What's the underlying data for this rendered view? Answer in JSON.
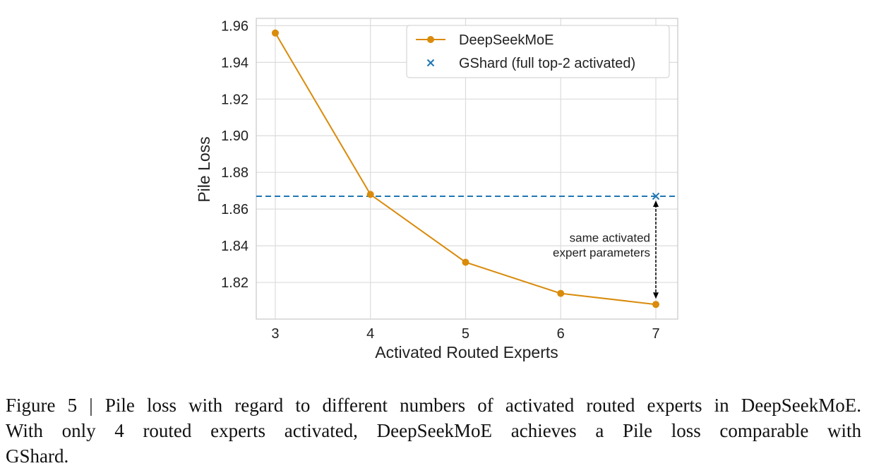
{
  "chart_data": {
    "type": "line",
    "title": "",
    "xlabel": "Activated Routed Experts",
    "ylabel": "Pile Loss",
    "x": [
      3,
      4,
      5,
      6,
      7
    ],
    "xticks": [
      "3",
      "4",
      "5",
      "6",
      "7"
    ],
    "yticks": [
      "1.82",
      "1.84",
      "1.86",
      "1.88",
      "1.90",
      "1.92",
      "1.94",
      "1.96"
    ],
    "xlim": [
      2.8,
      7.23
    ],
    "ylim": [
      1.8,
      1.964
    ],
    "grid": true,
    "series": [
      {
        "name": "DeepSeekMoE",
        "values": [
          1.956,
          1.868,
          1.831,
          1.814,
          1.808
        ],
        "color": "#d98b0b",
        "marker": "circle"
      }
    ],
    "reference": {
      "name": "GShard (full top-2 activated)",
      "value": 1.867,
      "point_x": 7,
      "color": "#1f77b4",
      "marker": "x",
      "style": "dashed"
    },
    "annotation": {
      "lines": [
        "same activated",
        "expert parameters"
      ],
      "x": 7,
      "from": 1.867,
      "to": 1.808
    },
    "legend_position": "top-right"
  },
  "caption": {
    "lines": [
      "Figure 5 | Pile loss with regard to different numbers of activated routed experts in DeepSeekMoE.",
      "With only 4 routed experts activated, DeepSeekMoE achieves a Pile loss comparable with",
      "GShard."
    ]
  }
}
